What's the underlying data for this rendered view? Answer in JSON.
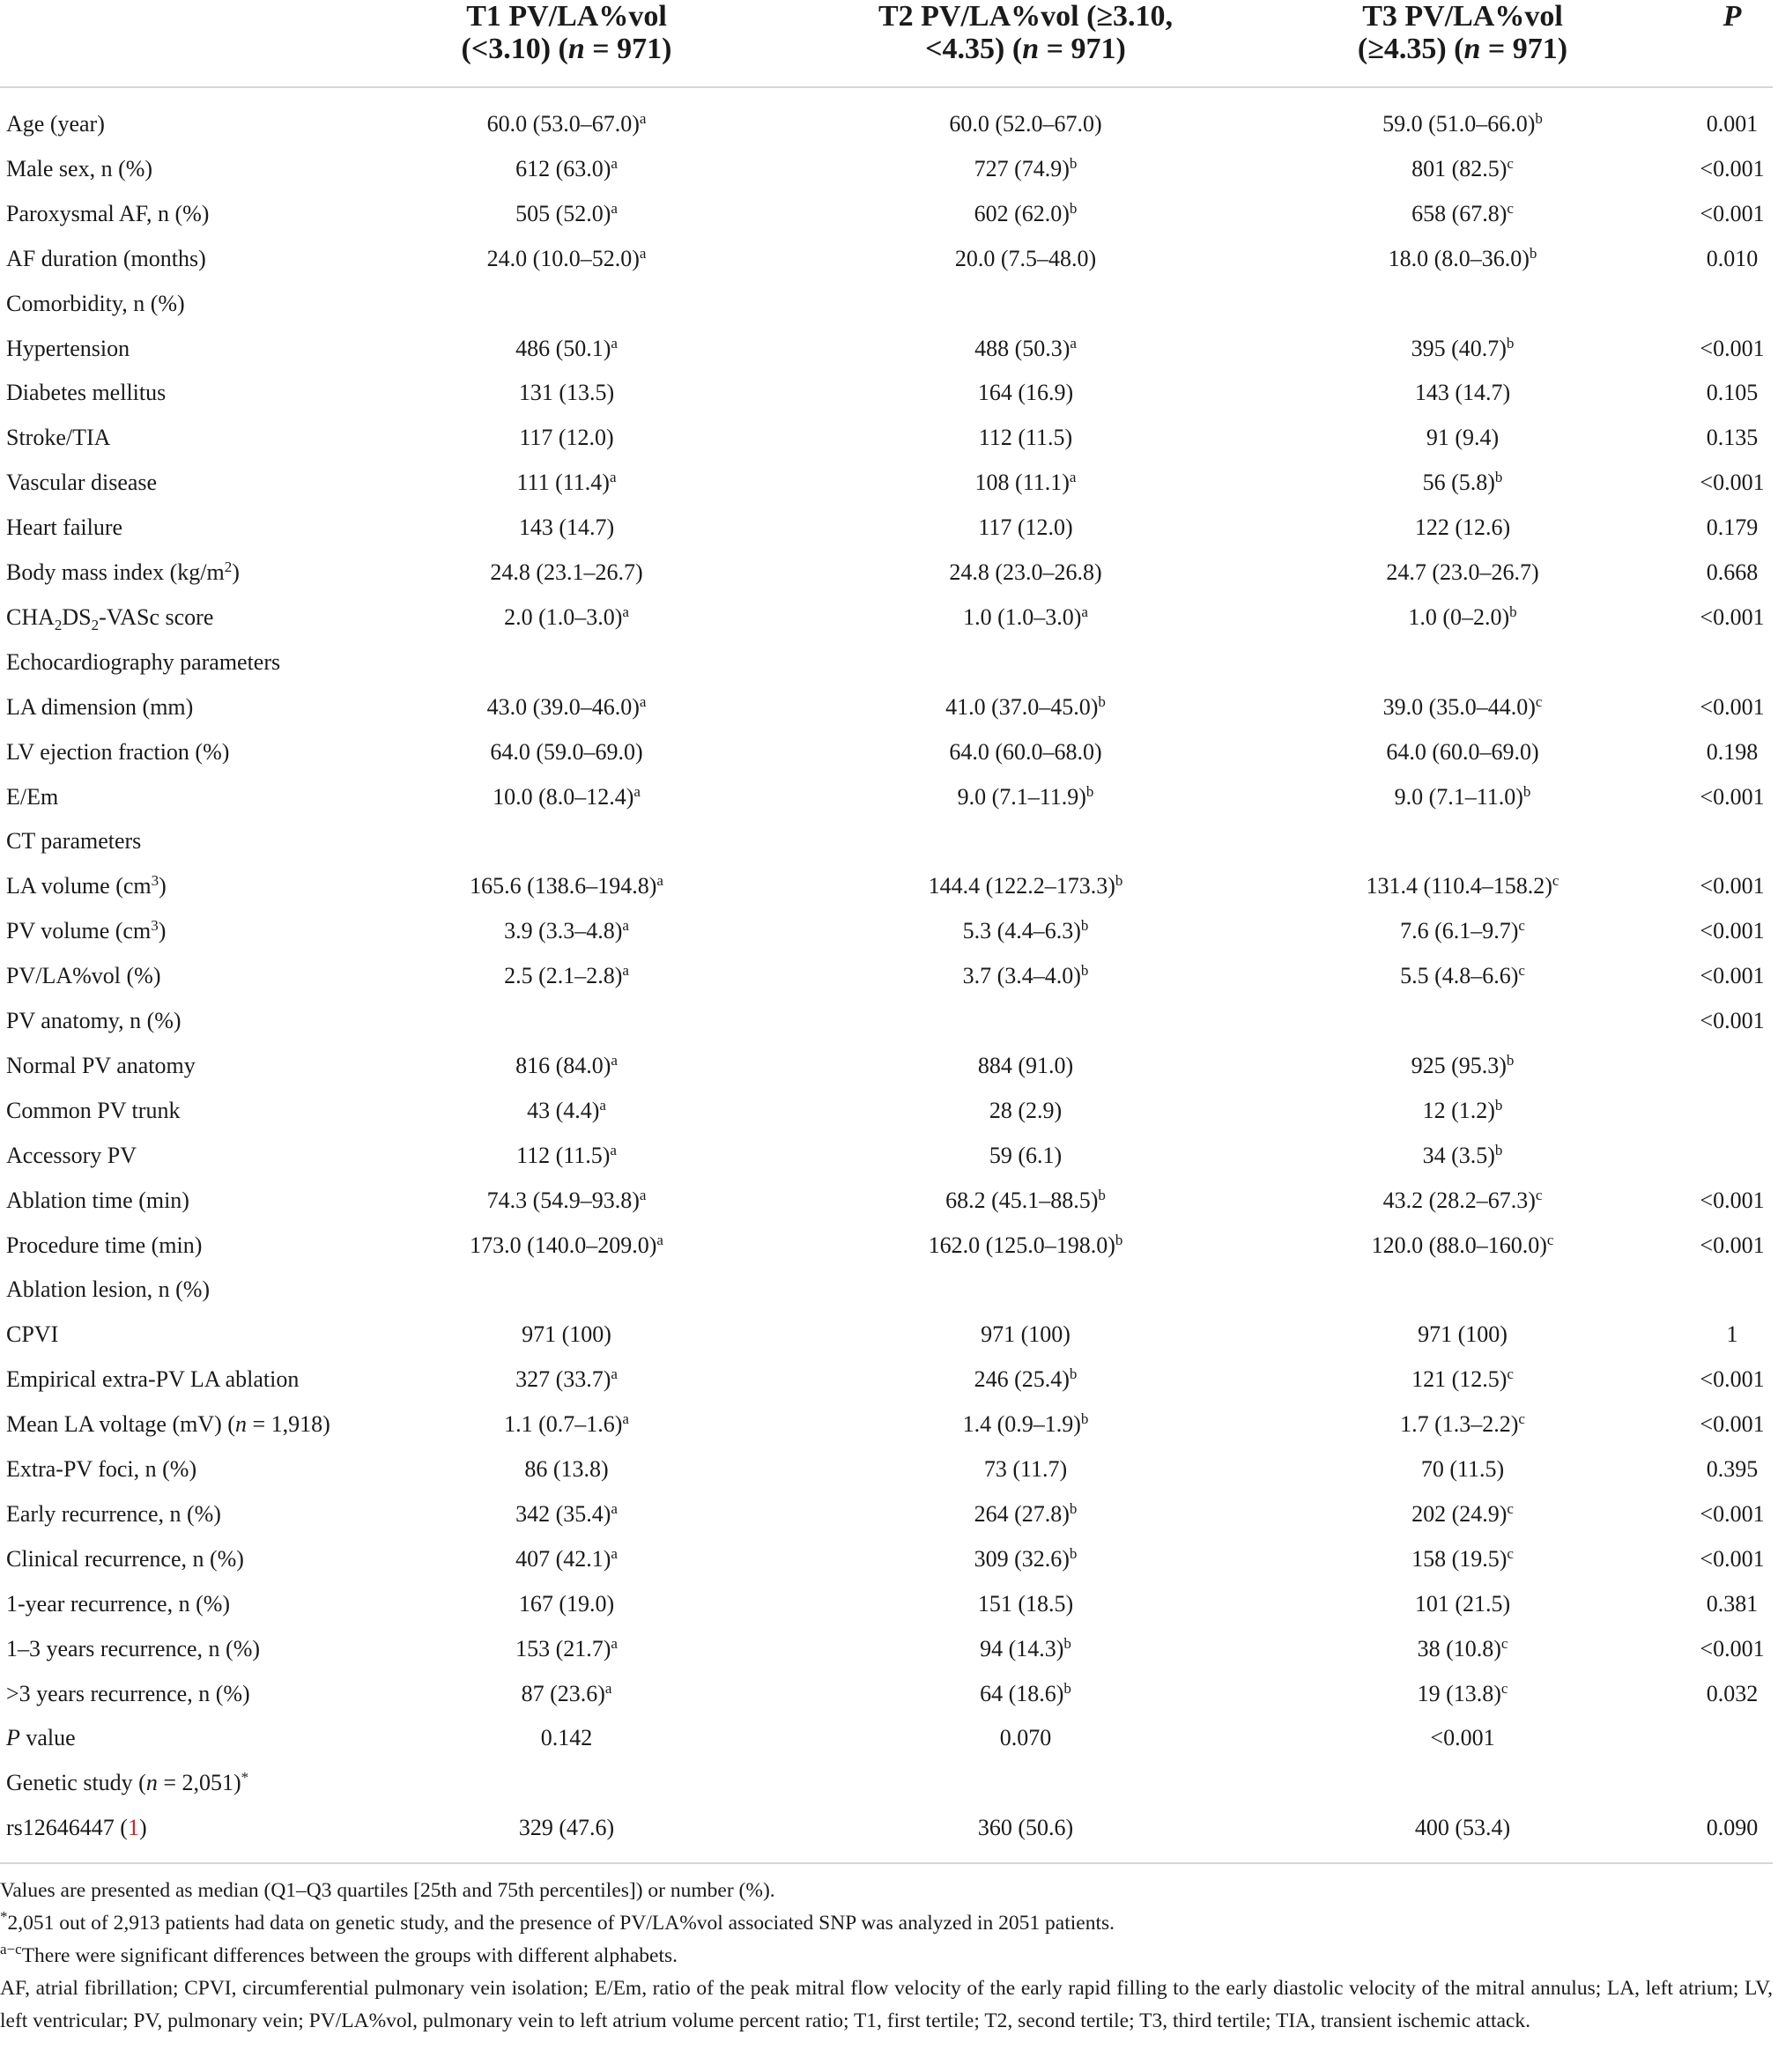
{
  "header": {
    "columns": [
      {
        "lines": [
          [
            "T1 PV/LA%vol"
          ],
          [
            "(<3.10) (",
            {
              "i": "n"
            },
            " = 971)"
          ]
        ]
      },
      {
        "lines": [
          [
            "T2 PV/LA%vol (≥3.10,"
          ],
          [
            "<4.35) (",
            {
              "i": "n"
            },
            " = 971)"
          ]
        ]
      },
      {
        "lines": [
          [
            "T3 PV/LA%vol"
          ],
          [
            "(≥4.35) (",
            {
              "i": "n"
            },
            " = 971)"
          ]
        ]
      },
      {
        "lines": [
          [
            {
              "i": "P"
            }
          ]
        ]
      }
    ]
  },
  "table": {
    "rows": [
      {
        "label": "Age (year)",
        "values": [
          [
            "60.0 (53.0–67.0)",
            {
              "sup": "a"
            }
          ],
          "60.0 (52.0–67.0)",
          [
            "59.0 (51.0–66.0)",
            {
              "sup": "b"
            }
          ],
          "0.001"
        ]
      },
      {
        "label": "Male sex, n (%)",
        "values": [
          [
            "612 (63.0)",
            {
              "sup": "a"
            }
          ],
          [
            "727 (74.9)",
            {
              "sup": "b"
            }
          ],
          [
            "801 (82.5)",
            {
              "sup": "c"
            }
          ],
          "<0.001"
        ]
      },
      {
        "label": "Paroxysmal AF, n (%)",
        "values": [
          [
            "505 (52.0)",
            {
              "sup": "a"
            }
          ],
          [
            "602 (62.0)",
            {
              "sup": "b"
            }
          ],
          [
            "658 (67.8)",
            {
              "sup": "c"
            }
          ],
          "<0.001"
        ]
      },
      {
        "label": "AF duration (months)",
        "values": [
          [
            "24.0 (10.0–52.0)",
            {
              "sup": "a"
            }
          ],
          "20.0 (7.5–48.0)",
          [
            "18.0 (8.0–36.0)",
            {
              "sup": "b"
            }
          ],
          "0.010"
        ]
      },
      {
        "label": "Comorbidity, n (%)",
        "values": [
          null,
          null,
          null,
          null
        ]
      },
      {
        "label": "Hypertension",
        "values": [
          [
            "486 (50.1)",
            {
              "sup": "a"
            }
          ],
          [
            "488 (50.3)",
            {
              "sup": "a"
            }
          ],
          [
            "395 (40.7)",
            {
              "sup": "b"
            }
          ],
          "<0.001"
        ]
      },
      {
        "label": "Diabetes mellitus",
        "values": [
          "131 (13.5)",
          "164 (16.9)",
          "143 (14.7)",
          "0.105"
        ]
      },
      {
        "label": "Stroke/TIA",
        "values": [
          "117 (12.0)",
          "112 (11.5)",
          "91 (9.4)",
          "0.135"
        ]
      },
      {
        "label": "Vascular disease",
        "values": [
          [
            "111 (11.4)",
            {
              "sup": "a"
            }
          ],
          [
            "108 (11.1)",
            {
              "sup": "a"
            }
          ],
          [
            "56 (5.8)",
            {
              "sup": "b"
            }
          ],
          "<0.001"
        ]
      },
      {
        "label": "Heart failure",
        "values": [
          "143 (14.7)",
          "117 (12.0)",
          "122 (12.6)",
          "0.179"
        ]
      },
      {
        "label": [
          "Body mass index (kg/m",
          {
            "sup": "2"
          },
          ")"
        ],
        "values": [
          "24.8 (23.1–26.7)",
          "24.8 (23.0–26.8)",
          "24.7 (23.0–26.7)",
          "0.668"
        ]
      },
      {
        "label": [
          "CHA",
          {
            "sub": "2"
          },
          "DS",
          {
            "sub": "2"
          },
          "-VASc score"
        ],
        "values": [
          [
            "2.0 (1.0–3.0)",
            {
              "sup": "a"
            }
          ],
          [
            "1.0 (1.0–3.0)",
            {
              "sup": "a"
            }
          ],
          [
            "1.0 (0–2.0)",
            {
              "sup": "b"
            }
          ],
          "<0.001"
        ]
      },
      {
        "label": "Echocardiography parameters",
        "values": [
          null,
          null,
          null,
          null
        ]
      },
      {
        "label": "LA dimension (mm)",
        "values": [
          [
            "43.0 (39.0–46.0)",
            {
              "sup": "a"
            }
          ],
          [
            "41.0 (37.0–45.0)",
            {
              "sup": "b"
            }
          ],
          [
            "39.0 (35.0–44.0)",
            {
              "sup": "c"
            }
          ],
          "<0.001"
        ]
      },
      {
        "label": "LV ejection fraction (%)",
        "values": [
          "64.0 (59.0–69.0)",
          "64.0 (60.0–68.0)",
          "64.0 (60.0–69.0)",
          "0.198"
        ]
      },
      {
        "label": "E/Em",
        "values": [
          [
            "10.0 (8.0–12.4)",
            {
              "sup": "a"
            }
          ],
          [
            "9.0 (7.1–11.9)",
            {
              "sup": "b"
            }
          ],
          [
            "9.0 (7.1–11.0)",
            {
              "sup": "b"
            }
          ],
          "<0.001"
        ]
      },
      {
        "label": "CT parameters",
        "values": [
          null,
          null,
          null,
          null
        ]
      },
      {
        "label": [
          "LA volume (cm",
          {
            "sup": "3"
          },
          ")"
        ],
        "values": [
          [
            "165.6 (138.6–194.8)",
            {
              "sup": "a"
            }
          ],
          [
            "144.4 (122.2–173.3)",
            {
              "sup": "b"
            }
          ],
          [
            "131.4 (110.4–158.2)",
            {
              "sup": "c"
            }
          ],
          "<0.001"
        ]
      },
      {
        "label": [
          "PV volume (cm",
          {
            "sup": "3"
          },
          ")"
        ],
        "values": [
          [
            "3.9 (3.3–4.8)",
            {
              "sup": "a"
            }
          ],
          [
            "5.3 (4.4–6.3)",
            {
              "sup": "b"
            }
          ],
          [
            "7.6 (6.1–9.7)",
            {
              "sup": "c"
            }
          ],
          "<0.001"
        ]
      },
      {
        "label": "PV/LA%vol (%)",
        "values": [
          [
            "2.5 (2.1–2.8)",
            {
              "sup": "a"
            }
          ],
          [
            "3.7 (3.4–4.0)",
            {
              "sup": "b"
            }
          ],
          [
            "5.5 (4.8–6.6)",
            {
              "sup": "c"
            }
          ],
          "<0.001"
        ]
      },
      {
        "label": "PV anatomy, n (%)",
        "values": [
          null,
          null,
          null,
          "<0.001"
        ]
      },
      {
        "label": "Normal PV anatomy",
        "values": [
          [
            "816 (84.0)",
            {
              "sup": "a"
            }
          ],
          "884 (91.0)",
          [
            "925 (95.3)",
            {
              "sup": "b"
            }
          ],
          null
        ]
      },
      {
        "label": "Common PV trunk",
        "values": [
          [
            "43 (4.4)",
            {
              "sup": "a"
            }
          ],
          "28 (2.9)",
          [
            "12 (1.2)",
            {
              "sup": "b"
            }
          ],
          null
        ]
      },
      {
        "label": "Accessory PV",
        "values": [
          [
            "112 (11.5)",
            {
              "sup": "a"
            }
          ],
          "59 (6.1)",
          [
            "34 (3.5)",
            {
              "sup": "b"
            }
          ],
          null
        ]
      },
      {
        "label": "Ablation time (min)",
        "values": [
          [
            "74.3 (54.9–93.8)",
            {
              "sup": "a"
            }
          ],
          [
            "68.2 (45.1–88.5)",
            {
              "sup": "b"
            }
          ],
          [
            "43.2 (28.2–67.3)",
            {
              "sup": "c"
            }
          ],
          "<0.001"
        ]
      },
      {
        "label": "Procedure time (min)",
        "values": [
          [
            "173.0 (140.0–209.0)",
            {
              "sup": "a"
            }
          ],
          [
            "162.0 (125.0–198.0)",
            {
              "sup": "b"
            }
          ],
          [
            "120.0 (88.0–160.0)",
            {
              "sup": "c"
            }
          ],
          "<0.001"
        ]
      },
      {
        "label": "Ablation lesion, n (%)",
        "values": [
          null,
          null,
          null,
          null
        ]
      },
      {
        "label": "CPVI",
        "values": [
          "971 (100)",
          "971 (100)",
          "971 (100)",
          "1"
        ]
      },
      {
        "label": "Empirical extra-PV LA ablation",
        "values": [
          [
            "327 (33.7)",
            {
              "sup": "a"
            }
          ],
          [
            "246 (25.4)",
            {
              "sup": "b"
            }
          ],
          [
            "121 (12.5)",
            {
              "sup": "c"
            }
          ],
          "<0.001"
        ]
      },
      {
        "label": [
          "Mean LA voltage (mV) (",
          {
            "i": "n"
          },
          " = 1,918)"
        ],
        "values": [
          [
            "1.1 (0.7–1.6)",
            {
              "sup": "a"
            }
          ],
          [
            "1.4 (0.9–1.9)",
            {
              "sup": "b"
            }
          ],
          [
            "1.7 (1.3–2.2)",
            {
              "sup": "c"
            }
          ],
          "<0.001"
        ]
      },
      {
        "label": "Extra-PV foci, n (%)",
        "values": [
          "86 (13.8)",
          "73 (11.7)",
          "70 (11.5)",
          "0.395"
        ]
      },
      {
        "label": "Early recurrence, n (%)",
        "values": [
          [
            "342 (35.4)",
            {
              "sup": "a"
            }
          ],
          [
            "264 (27.8)",
            {
              "sup": "b"
            }
          ],
          [
            "202 (24.9)",
            {
              "sup": "c"
            }
          ],
          "<0.001"
        ]
      },
      {
        "label": "Clinical recurrence, n (%)",
        "values": [
          [
            "407 (42.1)",
            {
              "sup": "a"
            }
          ],
          [
            "309 (32.6)",
            {
              "sup": "b"
            }
          ],
          [
            "158 (19.5)",
            {
              "sup": "c"
            }
          ],
          "<0.001"
        ]
      },
      {
        "label": "1-year recurrence, n (%)",
        "values": [
          "167 (19.0)",
          "151 (18.5)",
          "101 (21.5)",
          "0.381"
        ]
      },
      {
        "label": "1–3 years recurrence, n (%)",
        "values": [
          [
            "153 (21.7)",
            {
              "sup": "a"
            }
          ],
          [
            "94 (14.3)",
            {
              "sup": "b"
            }
          ],
          [
            "38 (10.8)",
            {
              "sup": "c"
            }
          ],
          "<0.001"
        ]
      },
      {
        "label": ">3 years recurrence, n (%)",
        "values": [
          [
            "87 (23.6)",
            {
              "sup": "a"
            }
          ],
          [
            "64 (18.6)",
            {
              "sup": "b"
            }
          ],
          [
            "19 (13.8)",
            {
              "sup": "c"
            }
          ],
          "0.032"
        ]
      },
      {
        "label": [
          {
            "i": "P"
          },
          " value"
        ],
        "values": [
          "0.142",
          "0.070",
          "<0.001",
          null
        ]
      },
      {
        "label": [
          "Genetic study (",
          {
            "i": "n"
          },
          " = 2,051)",
          {
            "sup": "*"
          }
        ],
        "values": [
          null,
          null,
          null,
          null
        ]
      },
      {
        "label": [
          "rs12646447 (",
          {
            "ref": "1"
          },
          ")"
        ],
        "values": [
          "329 (47.6)",
          "360 (50.6)",
          "400 (53.4)",
          "0.090"
        ]
      }
    ]
  },
  "footnotes": [
    [
      "Values are presented as median (Q1–Q3 quartiles [25th and 75th percentiles]) or number (%)."
    ],
    [
      {
        "sup": "*"
      },
      "2,051 out of 2,913 patients had data on genetic study, and the presence of PV/LA%vol associated SNP was analyzed in 2051 patients."
    ],
    [
      {
        "sup": "a−c"
      },
      "There were significant differences between the groups with different alphabets."
    ],
    [
      "AF, atrial fibrillation; CPVI, circumferential pulmonary vein isolation; E/Em, ratio of the peak mitral flow velocity of the early rapid filling to the early diastolic velocity of the mitral annulus; LA, left atrium; LV, left ventricular; PV, pulmonary vein; PV/LA%vol, pulmonary vein to left atrium volume percent ratio; T1, first tertile; T2, second tertile; T3, third tertile; TIA, transient ischemic attack."
    ]
  ]
}
